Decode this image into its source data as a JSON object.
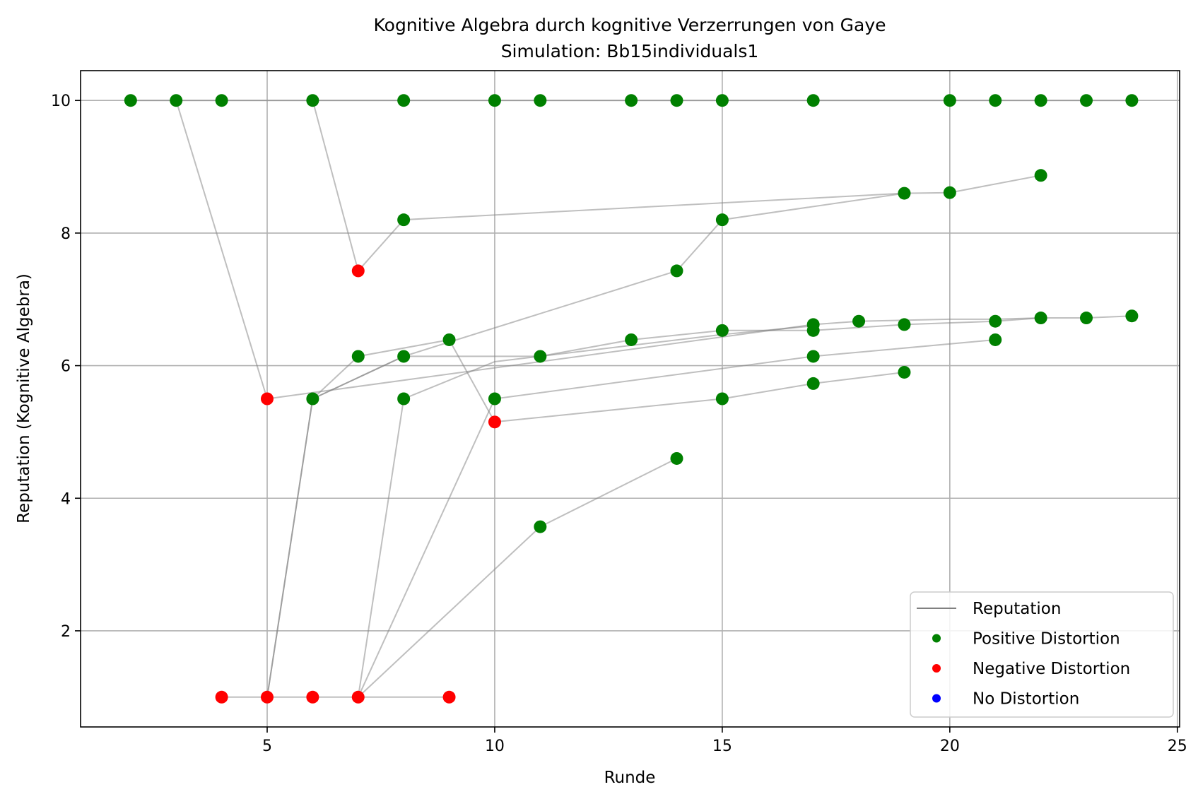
{
  "chart_data": {
    "type": "scatter",
    "title": "Kognitive Algebra durch kognitive Verzerrungen von Gaye",
    "subtitle": "Simulation: Bb15individuals1",
    "xlabel": "Runde",
    "ylabel": "Reputation (Kognitive Algebra)",
    "xlim": [
      0.9,
      25.05
    ],
    "ylim": [
      0.55,
      10.45
    ],
    "xticks": [
      5,
      10,
      15,
      20,
      25
    ],
    "yticks": [
      2,
      4,
      6,
      8,
      10
    ],
    "grid": true,
    "legend_position": "lower-right",
    "legend": [
      {
        "label": "Reputation",
        "kind": "line",
        "color": "#808080"
      },
      {
        "label": "Positive Distortion",
        "kind": "marker",
        "color": "#008000"
      },
      {
        "label": "Negative Distortion",
        "kind": "marker",
        "color": "#ff0000"
      },
      {
        "label": "No Distortion",
        "kind": "marker",
        "color": "#0000ff"
      }
    ],
    "lines": [
      {
        "points": [
          [
            2,
            10
          ],
          [
            3,
            10
          ],
          [
            4,
            10
          ],
          [
            5,
            10
          ],
          [
            6,
            10
          ],
          [
            8,
            10
          ],
          [
            10,
            10
          ],
          [
            11,
            10
          ],
          [
            13,
            10
          ],
          [
            14,
            10
          ],
          [
            15,
            10
          ],
          [
            17,
            10
          ],
          [
            20,
            10
          ],
          [
            21,
            10
          ],
          [
            22,
            10
          ],
          [
            23,
            10
          ],
          [
            24,
            10
          ]
        ]
      },
      {
        "points": [
          [
            3,
            10
          ],
          [
            5,
            5.5
          ],
          [
            17,
            6.62
          ],
          [
            18,
            6.67
          ],
          [
            20,
            6.7
          ],
          [
            21,
            6.7
          ],
          [
            22,
            6.72
          ],
          [
            23,
            6.72
          ],
          [
            24,
            6.75
          ]
        ]
      },
      {
        "points": [
          [
            6,
            10
          ],
          [
            7,
            7.43
          ],
          [
            8,
            8.2
          ],
          [
            19,
            8.6
          ],
          [
            20,
            8.61
          ],
          [
            22,
            8.87
          ]
        ]
      },
      {
        "points": [
          [
            4,
            1
          ],
          [
            5,
            1
          ],
          [
            6,
            1
          ],
          [
            7,
            1
          ],
          [
            8,
            1
          ],
          [
            9,
            1
          ]
        ]
      },
      {
        "points": [
          [
            5,
            1
          ],
          [
            6,
            5.5
          ],
          [
            7,
            6.14
          ],
          [
            9,
            6.39
          ],
          [
            10,
            5.15
          ],
          [
            15,
            5.5
          ],
          [
            17,
            5.73
          ],
          [
            19,
            5.9
          ]
        ]
      },
      {
        "points": [
          [
            5,
            1
          ],
          [
            6,
            5.5
          ],
          [
            8,
            6.14
          ],
          [
            14,
            7.43
          ],
          [
            15,
            8.2
          ],
          [
            19,
            8.6
          ]
        ]
      },
      {
        "points": [
          [
            6,
            5.5
          ],
          [
            8,
            6.14
          ],
          [
            11,
            6.14
          ],
          [
            13,
            6.39
          ],
          [
            15,
            6.53
          ],
          [
            17,
            6.53
          ],
          [
            19,
            6.62
          ],
          [
            21,
            6.67
          ],
          [
            22,
            6.72
          ]
        ]
      },
      {
        "points": [
          [
            7,
            1
          ],
          [
            8,
            5.5
          ],
          [
            10,
            6.06
          ],
          [
            15,
            6.47
          ],
          [
            17,
            6.6
          ]
        ]
      },
      {
        "points": [
          [
            7,
            1
          ],
          [
            10,
            5.5
          ],
          [
            17,
            6.14
          ],
          [
            21,
            6.39
          ]
        ]
      },
      {
        "points": [
          [
            7,
            1
          ],
          [
            11,
            3.57
          ],
          [
            14,
            4.6
          ]
        ]
      }
    ],
    "points": [
      {
        "x": 2,
        "y": 10,
        "distortion": "positive"
      },
      {
        "x": 3,
        "y": 10,
        "distortion": "positive"
      },
      {
        "x": 4,
        "y": 10,
        "distortion": "positive"
      },
      {
        "x": 6,
        "y": 10,
        "distortion": "positive"
      },
      {
        "x": 8,
        "y": 10,
        "distortion": "positive"
      },
      {
        "x": 10,
        "y": 10,
        "distortion": "positive"
      },
      {
        "x": 11,
        "y": 10,
        "distortion": "positive"
      },
      {
        "x": 13,
        "y": 10,
        "distortion": "positive"
      },
      {
        "x": 14,
        "y": 10,
        "distortion": "positive"
      },
      {
        "x": 15,
        "y": 10,
        "distortion": "positive"
      },
      {
        "x": 17,
        "y": 10,
        "distortion": "positive"
      },
      {
        "x": 20,
        "y": 10,
        "distortion": "positive"
      },
      {
        "x": 21,
        "y": 10,
        "distortion": "positive"
      },
      {
        "x": 22,
        "y": 10,
        "distortion": "positive"
      },
      {
        "x": 23,
        "y": 10,
        "distortion": "positive"
      },
      {
        "x": 24,
        "y": 10,
        "distortion": "positive"
      },
      {
        "x": 22,
        "y": 8.87,
        "distortion": "positive"
      },
      {
        "x": 19,
        "y": 8.6,
        "distortion": "positive"
      },
      {
        "x": 20,
        "y": 8.61,
        "distortion": "positive"
      },
      {
        "x": 8,
        "y": 8.2,
        "distortion": "positive"
      },
      {
        "x": 15,
        "y": 8.2,
        "distortion": "positive"
      },
      {
        "x": 14,
        "y": 7.43,
        "distortion": "positive"
      },
      {
        "x": 7,
        "y": 7.43,
        "distortion": "negative"
      },
      {
        "x": 24,
        "y": 6.75,
        "distortion": "positive"
      },
      {
        "x": 22,
        "y": 6.72,
        "distortion": "positive"
      },
      {
        "x": 23,
        "y": 6.72,
        "distortion": "positive"
      },
      {
        "x": 21,
        "y": 6.67,
        "distortion": "positive"
      },
      {
        "x": 18,
        "y": 6.67,
        "distortion": "positive"
      },
      {
        "x": 17,
        "y": 6.62,
        "distortion": "positive"
      },
      {
        "x": 19,
        "y": 6.62,
        "distortion": "positive"
      },
      {
        "x": 17,
        "y": 6.53,
        "distortion": "positive"
      },
      {
        "x": 15,
        "y": 6.53,
        "distortion": "positive"
      },
      {
        "x": 13,
        "y": 6.39,
        "distortion": "positive"
      },
      {
        "x": 9,
        "y": 6.39,
        "distortion": "positive"
      },
      {
        "x": 21,
        "y": 6.39,
        "distortion": "positive"
      },
      {
        "x": 7,
        "y": 6.14,
        "distortion": "positive"
      },
      {
        "x": 8,
        "y": 6.14,
        "distortion": "positive"
      },
      {
        "x": 11,
        "y": 6.14,
        "distortion": "positive"
      },
      {
        "x": 17,
        "y": 6.14,
        "distortion": "positive"
      },
      {
        "x": 19,
        "y": 5.9,
        "distortion": "positive"
      },
      {
        "x": 17,
        "y": 5.73,
        "distortion": "positive"
      },
      {
        "x": 6,
        "y": 5.5,
        "distortion": "positive"
      },
      {
        "x": 8,
        "y": 5.5,
        "distortion": "positive"
      },
      {
        "x": 10,
        "y": 5.5,
        "distortion": "positive"
      },
      {
        "x": 15,
        "y": 5.5,
        "distortion": "positive"
      },
      {
        "x": 5,
        "y": 5.5,
        "distortion": "negative"
      },
      {
        "x": 10,
        "y": 5.15,
        "distortion": "negative"
      },
      {
        "x": 14,
        "y": 4.6,
        "distortion": "positive"
      },
      {
        "x": 11,
        "y": 3.57,
        "distortion": "positive"
      },
      {
        "x": 4,
        "y": 1,
        "distortion": "negative"
      },
      {
        "x": 5,
        "y": 1,
        "distortion": "negative"
      },
      {
        "x": 6,
        "y": 1,
        "distortion": "negative"
      },
      {
        "x": 7,
        "y": 1,
        "distortion": "negative"
      },
      {
        "x": 9,
        "y": 1,
        "distortion": "negative"
      }
    ]
  }
}
